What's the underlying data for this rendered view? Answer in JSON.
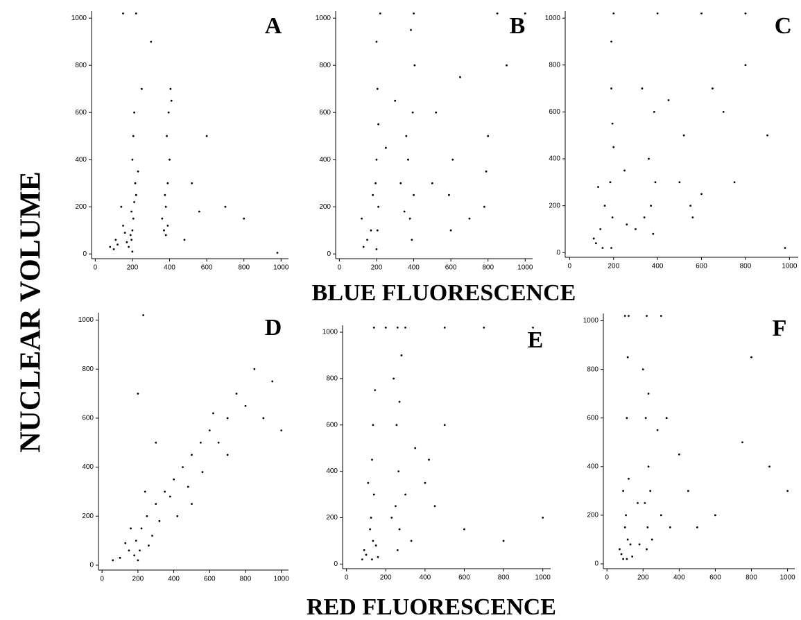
{
  "labels": {
    "y": "NUCLEAR VOLUME",
    "x_top": "BLUE FLUORESCENCE",
    "x_bottom": "RED FLUORESCENCE"
  },
  "chart_data": [
    {
      "type": "scatter",
      "title": "A",
      "color": "#000000",
      "xlim": [
        -20,
        1040
      ],
      "ylim": [
        -20,
        1030
      ],
      "xticks": [
        0,
        200,
        400,
        600,
        800,
        1000
      ],
      "yticks": [
        0,
        200,
        400,
        600,
        800,
        1000
      ],
      "x": [
        180,
        195,
        200,
        205,
        210,
        190,
        215,
        200,
        170,
        150,
        120,
        100,
        80,
        205,
        210,
        200,
        220,
        195,
        230,
        160,
        140,
        110,
        370,
        380,
        390,
        400,
        385,
        395,
        410,
        360,
        375,
        405,
        390,
        380,
        520,
        560,
        600,
        700,
        800,
        980,
        300,
        250,
        150,
        220,
        480
      ],
      "y": [
        30,
        60,
        100,
        150,
        220,
        80,
        300,
        400,
        50,
        120,
        40,
        20,
        30,
        500,
        600,
        10,
        250,
        180,
        350,
        90,
        200,
        60,
        100,
        200,
        300,
        400,
        500,
        600,
        650,
        150,
        250,
        700,
        120,
        80,
        300,
        180,
        500,
        200,
        150,
        5,
        900,
        700,
        1020,
        1020,
        60
      ]
    },
    {
      "type": "scatter",
      "title": "B",
      "color": "#000000",
      "xlim": [
        -20,
        1040
      ],
      "ylim": [
        -20,
        1030
      ],
      "xticks": [
        0,
        200,
        400,
        600,
        800,
        1000
      ],
      "yticks": [
        0,
        200,
        400,
        600,
        800,
        1000
      ],
      "x": [
        200,
        205,
        210,
        195,
        200,
        210,
        150,
        130,
        120,
        180,
        170,
        205,
        200,
        390,
        380,
        400,
        370,
        360,
        395,
        405,
        385,
        350,
        330,
        600,
        590,
        610,
        780,
        790,
        800,
        500,
        520,
        700,
        900,
        1000,
        220,
        400,
        300,
        650,
        850,
        250
      ],
      "y": [
        20,
        100,
        200,
        300,
        400,
        550,
        60,
        30,
        150,
        250,
        100,
        700,
        900,
        60,
        150,
        250,
        400,
        500,
        600,
        800,
        950,
        180,
        300,
        100,
        250,
        400,
        200,
        350,
        500,
        300,
        600,
        150,
        800,
        1020,
        1020,
        1020,
        650,
        750,
        1020,
        450
      ]
    },
    {
      "type": "scatter",
      "title": "C",
      "color": "#000000",
      "xlim": [
        -20,
        1040
      ],
      "ylim": [
        -20,
        1030
      ],
      "xticks": [
        0,
        200,
        400,
        600,
        800,
        1000
      ],
      "yticks": [
        0,
        200,
        400,
        600,
        800,
        1000
      ],
      "x": [
        190,
        195,
        185,
        200,
        190,
        120,
        140,
        160,
        110,
        150,
        190,
        195,
        380,
        370,
        390,
        340,
        360,
        385,
        330,
        500,
        550,
        600,
        520,
        700,
        750,
        800,
        650,
        900,
        1000,
        980,
        300,
        250,
        450,
        200,
        400,
        600,
        800,
        130,
        260,
        560
      ],
      "y": [
        20,
        150,
        300,
        450,
        700,
        40,
        100,
        200,
        60,
        20,
        900,
        550,
        80,
        200,
        300,
        150,
        400,
        600,
        700,
        300,
        200,
        250,
        500,
        600,
        300,
        800,
        700,
        500,
        950,
        20,
        100,
        350,
        650,
        1020,
        1020,
        1020,
        1020,
        280,
        120,
        150
      ]
    },
    {
      "type": "scatter",
      "title": "D",
      "color": "#000000",
      "xlim": [
        -20,
        1040
      ],
      "ylim": [
        -20,
        1030
      ],
      "xticks": [
        0,
        200,
        400,
        600,
        800,
        1000
      ],
      "yticks": [
        0,
        200,
        400,
        600,
        800,
        1000
      ],
      "x": [
        200,
        210,
        190,
        180,
        220,
        250,
        300,
        280,
        150,
        100,
        60,
        350,
        400,
        450,
        500,
        550,
        600,
        650,
        700,
        800,
        900,
        1000,
        320,
        380,
        420,
        480,
        260,
        240,
        160,
        130,
        560,
        620,
        750,
        850,
        950,
        300,
        200,
        500,
        700,
        230
      ],
      "y": [
        20,
        60,
        100,
        40,
        150,
        200,
        250,
        120,
        60,
        30,
        20,
        300,
        350,
        400,
        450,
        500,
        550,
        500,
        600,
        650,
        600,
        550,
        180,
        280,
        200,
        320,
        80,
        300,
        150,
        90,
        380,
        620,
        700,
        800,
        750,
        500,
        700,
        250,
        450,
        1020
      ]
    },
    {
      "type": "scatter",
      "title": "E",
      "color": "#000000",
      "xlim": [
        -20,
        1040
      ],
      "ylim": [
        -20,
        1030
      ],
      "xticks": [
        0,
        200,
        400,
        600,
        800,
        1000
      ],
      "yticks": [
        0,
        200,
        400,
        600,
        800,
        1000
      ],
      "x": [
        130,
        135,
        125,
        140,
        130,
        100,
        90,
        80,
        120,
        150,
        135,
        260,
        270,
        250,
        265,
        255,
        240,
        280,
        230,
        300,
        350,
        400,
        450,
        500,
        600,
        800,
        1000,
        140,
        260,
        200,
        300,
        500,
        700,
        950,
        110,
        270,
        330,
        420,
        160,
        145
      ],
      "y": [
        20,
        100,
        200,
        300,
        450,
        40,
        60,
        20,
        150,
        80,
        600,
        60,
        150,
        250,
        400,
        600,
        800,
        900,
        200,
        300,
        500,
        350,
        250,
        600,
        150,
        100,
        200,
        1020,
        1020,
        1020,
        1020,
        1020,
        1020,
        1020,
        350,
        700,
        100,
        450,
        30,
        750
      ]
    },
    {
      "type": "scatter",
      "title": "F",
      "color": "#000000",
      "xlim": [
        -20,
        1040
      ],
      "ylim": [
        -20,
        1030
      ],
      "xticks": [
        0,
        200,
        400,
        600,
        800,
        1000
      ],
      "yticks": [
        0,
        200,
        400,
        600,
        800,
        1000
      ],
      "x": [
        110,
        115,
        105,
        120,
        110,
        80,
        70,
        90,
        100,
        130,
        115,
        220,
        225,
        210,
        230,
        215,
        200,
        240,
        250,
        300,
        350,
        400,
        450,
        600,
        750,
        900,
        1000,
        120,
        220,
        300,
        100,
        230,
        280,
        500,
        170,
        180,
        90,
        800,
        140,
        330
      ],
      "y": [
        20,
        100,
        200,
        350,
        600,
        40,
        60,
        20,
        150,
        80,
        850,
        60,
        150,
        250,
        400,
        600,
        800,
        300,
        100,
        200,
        150,
        450,
        300,
        200,
        500,
        400,
        300,
        1020,
        1020,
        1020,
        1020,
        700,
        550,
        150,
        250,
        80,
        300,
        850,
        30,
        600
      ]
    }
  ]
}
